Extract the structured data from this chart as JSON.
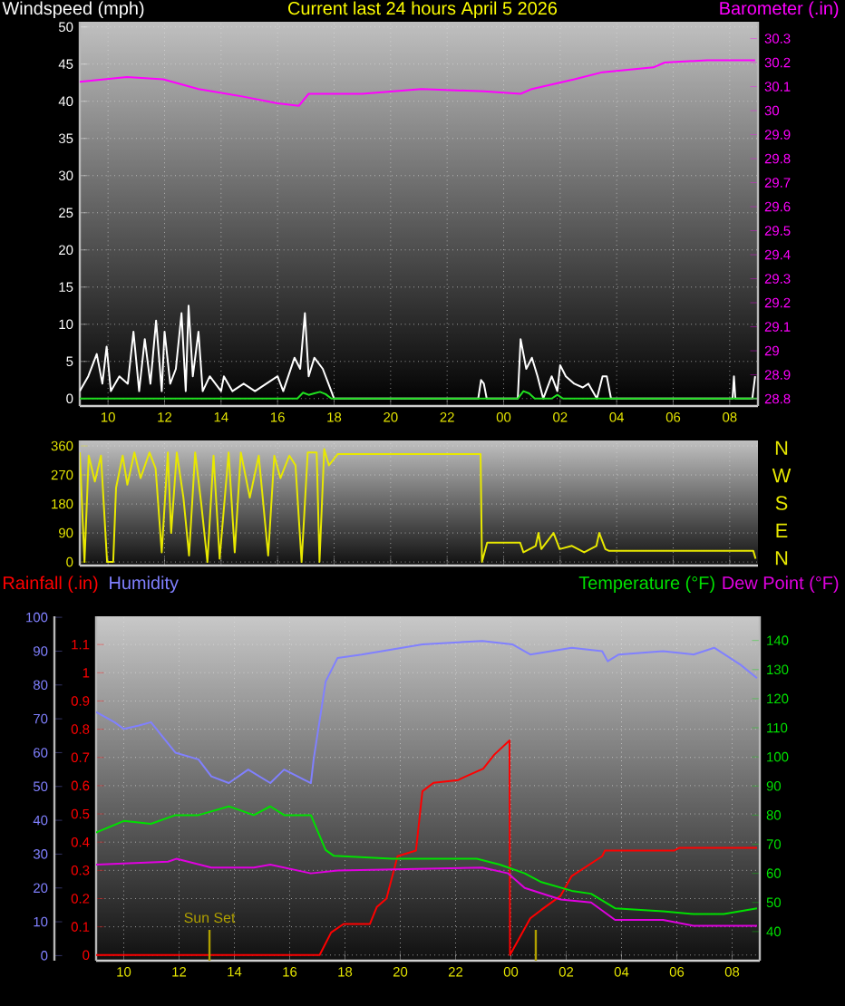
{
  "chart_data": [
    {
      "type": "line",
      "title": "Current last 24 hours April 5 2026",
      "ylabel": "Windspeed (mph)",
      "y2label": "Barometer (.in)",
      "grid": true,
      "xlim": [
        "2026-04-04T09:00",
        "2026-04-05T09:00"
      ],
      "xticks": [
        {
          "value": "2026-04-04T10:00",
          "label": "10"
        },
        {
          "value": "2026-04-04T12:00",
          "label": "12"
        },
        {
          "value": "2026-04-04T14:00",
          "label": "14"
        },
        {
          "value": "2026-04-04T16:00",
          "label": "16"
        },
        {
          "value": "2026-04-04T18:00",
          "label": "18"
        },
        {
          "value": "2026-04-04T20:00",
          "label": "20"
        },
        {
          "value": "2026-04-04T22:00",
          "label": "22"
        },
        {
          "value": "2026-04-05T00:00",
          "label": "00"
        },
        {
          "value": "2026-04-05T02:00",
          "label": "02"
        },
        {
          "value": "2026-04-05T04:00",
          "label": "04"
        },
        {
          "value": "2026-04-05T06:00",
          "label": "06"
        },
        {
          "value": "2026-04-05T08:00",
          "label": "08"
        }
      ],
      "ylim": [
        -1,
        50.7
      ],
      "yticks": [
        0,
        5,
        10,
        15,
        20,
        25,
        30,
        35,
        40,
        45,
        50
      ],
      "y2lim": [
        28.77,
        30.37
      ],
      "y2ticks": [
        28.8,
        28.9,
        29,
        29.1,
        29.2,
        29.3,
        29.4,
        29.5,
        29.6,
        29.7,
        29.8,
        29.9,
        30,
        30.1,
        30.2,
        30.3
      ],
      "series": [
        {
          "color": "#ffffff",
          "x": [
            "2026-04-04T09:00",
            "2026-04-04T09:18",
            "2026-04-04T09:36",
            "2026-04-04T09:48",
            "2026-04-04T09:57",
            "2026-04-04T10:06",
            "2026-04-04T10:24",
            "2026-04-04T10:42",
            "2026-04-04T10:54",
            "2026-04-04T11:06",
            "2026-04-04T11:18",
            "2026-04-04T11:30",
            "2026-04-04T11:42",
            "2026-04-04T11:54",
            "2026-04-04T12:00",
            "2026-04-04T12:12",
            "2026-04-04T12:24",
            "2026-04-04T12:36",
            "2026-04-04T12:45",
            "2026-04-04T12:51",
            "2026-04-04T13:00",
            "2026-04-04T13:12",
            "2026-04-04T13:21",
            "2026-04-04T13:36",
            "2026-04-04T14:00",
            "2026-04-04T14:06",
            "2026-04-04T14:24",
            "2026-04-04T14:48",
            "2026-04-04T15:12",
            "2026-04-04T15:36",
            "2026-04-04T16:00",
            "2026-04-04T16:12",
            "2026-04-04T16:36",
            "2026-04-04T16:48",
            "2026-04-04T16:58",
            "2026-04-04T17:06",
            "2026-04-04T17:18",
            "2026-04-04T17:36",
            "2026-04-04T17:48",
            "2026-04-04T18:00",
            "2026-04-04T23:06",
            "2026-04-04T23:12",
            "2026-04-04T23:18",
            "2026-04-04T23:24",
            "2026-04-05T00:30",
            "2026-04-05T00:36",
            "2026-04-05T00:48",
            "2026-04-05T01:00",
            "2026-04-05T01:12",
            "2026-04-05T01:24",
            "2026-04-05T01:42",
            "2026-04-05T01:54",
            "2026-04-05T02:00",
            "2026-04-05T02:12",
            "2026-04-05T02:30",
            "2026-04-05T02:48",
            "2026-04-05T03:00",
            "2026-04-05T03:18",
            "2026-04-05T03:30",
            "2026-04-05T03:39",
            "2026-04-05T03:48",
            "2026-04-05T08:06",
            "2026-04-05T08:09",
            "2026-04-05T08:12",
            "2026-04-05T08:48",
            "2026-04-05T08:54"
          ],
          "values": [
            1,
            3,
            6,
            2,
            7,
            1,
            3,
            2,
            9,
            1,
            8,
            2,
            10.5,
            1,
            9,
            2,
            4,
            11.5,
            1,
            12.5,
            3,
            9,
            1,
            3,
            1,
            3,
            1,
            2,
            1,
            2,
            3,
            1,
            5.5,
            4,
            11.5,
            3,
            5.5,
            4,
            2,
            0,
            0,
            2.5,
            2,
            0,
            0,
            8,
            4,
            5.5,
            3,
            0,
            3,
            1,
            4.5,
            3,
            2,
            1.5,
            2,
            0,
            3,
            3,
            0,
            0,
            3,
            0,
            0,
            3
          ]
        },
        {
          "color": "#20e020",
          "x": [
            "2026-04-04T09:00",
            "2026-04-04T16:42",
            "2026-04-04T16:54",
            "2026-04-04T17:06",
            "2026-04-04T17:18",
            "2026-04-04T17:30",
            "2026-04-04T17:42",
            "2026-04-04T17:54",
            "2026-04-05T00:30",
            "2026-04-05T00:42",
            "2026-04-05T00:54",
            "2026-04-05T01:06",
            "2026-04-05T01:42",
            "2026-04-05T01:54",
            "2026-04-05T02:06",
            "2026-04-05T09:00"
          ],
          "values": [
            0,
            0,
            0.8,
            0.5,
            0.7,
            0.9,
            0.6,
            0,
            0,
            1,
            0.7,
            0,
            0,
            0.5,
            0,
            0
          ]
        },
        {
          "color": "#ff00ff",
          "axis": "y2",
          "x": [
            "2026-04-04T09:00",
            "2026-04-04T10:40",
            "2026-04-04T11:57",
            "2026-04-04T13:12",
            "2026-04-04T14:42",
            "2026-04-04T16:00",
            "2026-04-04T16:45",
            "2026-04-04T17:06",
            "2026-04-04T19:00",
            "2026-04-04T21:06",
            "2026-04-04T23:18",
            "2026-04-05T00:36",
            "2026-04-05T01:00",
            "2026-04-05T02:30",
            "2026-04-05T03:30",
            "2026-04-05T05:18",
            "2026-04-05T05:42",
            "2026-04-05T07:12",
            "2026-04-05T08:54"
          ],
          "values": [
            30.12,
            30.14,
            30.13,
            30.09,
            30.06,
            30.03,
            30.02,
            30.07,
            30.07,
            30.09,
            30.08,
            30.07,
            30.09,
            30.13,
            30.16,
            30.18,
            30.2,
            30.21,
            30.21
          ]
        }
      ]
    },
    {
      "type": "line",
      "grid": true,
      "tick_labels": "y",
      "xlim": [
        "2026-04-04T09:00",
        "2026-04-05T09:00"
      ],
      "xticks": [
        {
          "value": "2026-04-04T10:00",
          "label": null
        },
        {
          "value": "2026-04-04T12:00",
          "label": null
        },
        {
          "value": "2026-04-04T14:00",
          "label": null
        },
        {
          "value": "2026-04-04T16:00",
          "label": null
        },
        {
          "value": "2026-04-04T18:00",
          "label": null
        },
        {
          "value": "2026-04-04T20:00",
          "label": null
        },
        {
          "value": "2026-04-04T22:00",
          "label": null
        },
        {
          "value": "2026-04-05T00:00",
          "label": null
        },
        {
          "value": "2026-04-05T02:00",
          "label": null
        },
        {
          "value": "2026-04-05T04:00",
          "label": null
        },
        {
          "value": "2026-04-05T06:00",
          "label": null
        },
        {
          "value": "2026-04-05T08:00",
          "label": null
        }
      ],
      "ylim": [
        -11,
        377
      ],
      "yticks": [
        0,
        90,
        180,
        270,
        360
      ],
      "annotations": [
        "N",
        "W",
        "S",
        "E",
        "N"
      ],
      "series": [
        {
          "color": "#e8e800",
          "x": [
            "2026-04-04T09:00",
            "2026-04-04T09:10",
            "2026-04-04T09:19",
            "2026-04-04T09:32",
            "2026-04-04T09:45",
            "2026-04-04T09:58",
            "2026-04-04T10:11",
            "2026-04-04T10:17",
            "2026-04-04T10:31",
            "2026-04-04T10:41",
            "2026-04-04T10:56",
            "2026-04-04T11:09",
            "2026-04-04T11:28",
            "2026-04-04T11:41",
            "2026-04-04T11:54",
            "2026-04-04T12:07",
            "2026-04-04T12:14",
            "2026-04-04T12:26",
            "2026-04-04T12:40",
            "2026-04-04T12:52",
            "2026-04-04T13:05",
            "2026-04-04T13:18",
            "2026-04-04T13:31",
            "2026-04-04T13:44",
            "2026-04-04T13:57",
            "2026-04-04T14:16",
            "2026-04-04T14:29",
            "2026-04-04T14:42",
            "2026-04-04T15:01",
            "2026-04-04T15:20",
            "2026-04-04T15:40",
            "2026-04-04T15:53",
            "2026-04-04T16:06",
            "2026-04-04T16:25",
            "2026-04-04T16:38",
            "2026-04-04T16:51",
            "2026-04-04T17:04",
            "2026-04-04T17:23",
            "2026-04-04T17:29",
            "2026-04-04T17:39",
            "2026-04-04T17:49",
            "2026-04-04T18:08",
            "2026-04-04T23:11",
            "2026-04-04T23:14",
            "2026-04-04T23:25",
            "2026-04-05T00:35",
            "2026-04-05T00:42",
            "2026-04-05T01:08",
            "2026-04-05T01:14",
            "2026-04-05T01:20",
            "2026-04-05T01:46",
            "2026-04-05T01:59",
            "2026-04-05T02:25",
            "2026-04-05T02:51",
            "2026-04-05T03:17",
            "2026-04-05T03:23",
            "2026-04-05T03:36",
            "2026-04-05T03:43",
            "2026-04-05T08:50",
            "2026-04-05T08:55"
          ],
          "values": [
            340,
            0,
            330,
            250,
            330,
            0,
            0,
            230,
            330,
            240,
            340,
            260,
            340,
            290,
            30,
            340,
            90,
            340,
            200,
            20,
            340,
            180,
            0,
            330,
            10,
            340,
            30,
            340,
            200,
            330,
            20,
            330,
            260,
            330,
            300,
            0,
            340,
            340,
            0,
            350,
            300,
            335,
            335,
            0,
            60,
            60,
            30,
            50,
            90,
            40,
            90,
            40,
            50,
            30,
            50,
            90,
            40,
            35,
            35,
            10
          ]
        }
      ]
    },
    {
      "type": "line",
      "grid": true,
      "xlim": [
        "2026-04-04T09:00",
        "2026-04-05T09:00"
      ],
      "xticks": [
        {
          "value": "2026-04-04T10:00",
          "label": "10"
        },
        {
          "value": "2026-04-04T12:00",
          "label": "12"
        },
        {
          "value": "2026-04-04T14:00",
          "label": "14"
        },
        {
          "value": "2026-04-04T16:00",
          "label": "16"
        },
        {
          "value": "2026-04-04T18:00",
          "label": "18"
        },
        {
          "value": "2026-04-04T20:00",
          "label": "20"
        },
        {
          "value": "2026-04-04T22:00",
          "label": "22"
        },
        {
          "value": "2026-04-05T00:00",
          "label": "00"
        },
        {
          "value": "2026-04-05T02:00",
          "label": "02"
        },
        {
          "value": "2026-04-05T04:00",
          "label": "04"
        },
        {
          "value": "2026-04-05T06:00",
          "label": "06"
        },
        {
          "value": "2026-04-05T08:00",
          "label": "08"
        }
      ],
      "ylim": [
        -0.02,
        1.2
      ],
      "yticks": [
        0,
        0.1,
        0.2,
        0.3,
        0.4,
        0.5,
        0.6,
        0.7,
        0.8,
        0.9,
        1,
        1.1
      ],
      "y2lim": [
        -1.5,
        100.3
      ],
      "y2ticks": [
        0,
        10,
        20,
        30,
        40,
        50,
        60,
        70,
        80,
        90,
        100
      ],
      "y3lim": [
        30,
        148.3
      ],
      "y3ticks": [
        40,
        50,
        60,
        70,
        80,
        90,
        100,
        110,
        120,
        130,
        140
      ],
      "ref_lines": [
        {
          "axis": "x",
          "value": "2026-04-04T13:06",
          "label": "Sun Set",
          "color": "#b0a000"
        },
        {
          "axis": "x",
          "value": "2026-04-05T00:54",
          "color": "#b0a000"
        }
      ],
      "series": [
        {
          "name": "Rainfall (.in)",
          "color": "#ff0000",
          "x": [
            "2026-04-04T09:00",
            "2026-04-04T17:05",
            "2026-04-04T17:30",
            "2026-04-04T17:57",
            "2026-04-04T18:54",
            "2026-04-04T19:09",
            "2026-04-04T19:30",
            "2026-04-04T19:54",
            "2026-04-04T20:34",
            "2026-04-04T20:48",
            "2026-04-04T21:12",
            "2026-04-04T22:06",
            "2026-04-04T22:18",
            "2026-04-04T23:00",
            "2026-04-04T23:24",
            "2026-04-04T23:57",
            "2026-04-04T23:58",
            "2026-04-05T00:42",
            "2026-04-05T01:06",
            "2026-04-05T01:48",
            "2026-04-05T02:12",
            "2026-04-05T03:18",
            "2026-04-05T03:24",
            "2026-04-05T05:54",
            "2026-04-05T06:06",
            "2026-04-05T08:54"
          ],
          "values": [
            0,
            0,
            0.08,
            0.11,
            0.11,
            0.17,
            0.2,
            0.35,
            0.37,
            0.58,
            0.61,
            0.62,
            0.63,
            0.66,
            0.71,
            0.76,
            0,
            0.13,
            0.16,
            0.21,
            0.28,
            0.35,
            0.37,
            0.37,
            0.38,
            0.38
          ]
        },
        {
          "name": "Humidity",
          "color": "#8080ff",
          "axis": "y2",
          "x": [
            "2026-04-04T09:00",
            "2026-04-04T09:40",
            "2026-04-04T10:00",
            "2026-04-04T10:33",
            "2026-04-04T10:59",
            "2026-04-04T11:52",
            "2026-04-04T12:42",
            "2026-04-04T13:10",
            "2026-04-04T13:48",
            "2026-04-04T14:30",
            "2026-04-04T15:18",
            "2026-04-04T15:48",
            "2026-04-04T16:46",
            "2026-04-04T16:52",
            "2026-04-04T17:18",
            "2026-04-04T17:44",
            "2026-04-04T18:36",
            "2026-04-04T20:48",
            "2026-04-04T22:58",
            "2026-04-05T00:03",
            "2026-04-05T00:42",
            "2026-04-05T02:12",
            "2026-04-05T03:18",
            "2026-04-05T03:30",
            "2026-04-05T03:54",
            "2026-04-05T05:30",
            "2026-04-05T06:36",
            "2026-04-05T07:21",
            "2026-04-05T08:18",
            "2026-04-05T08:54"
          ],
          "values": [
            72,
            69,
            67,
            68,
            69,
            60,
            58,
            53,
            51,
            55,
            51,
            55,
            51,
            58,
            81,
            88,
            89,
            92,
            93,
            92,
            89,
            91,
            90,
            87,
            89,
            90,
            89,
            91,
            86,
            82
          ]
        },
        {
          "name": "Temperature (°F)",
          "color": "#00e000",
          "axis": "y3",
          "x": [
            "2026-04-04T09:00",
            "2026-04-04T10:00",
            "2026-04-04T10:59",
            "2026-04-04T11:52",
            "2026-04-04T12:42",
            "2026-04-04T13:48",
            "2026-04-04T14:42",
            "2026-04-04T15:18",
            "2026-04-04T15:48",
            "2026-04-04T16:46",
            "2026-04-04T17:18",
            "2026-04-04T17:36",
            "2026-04-04T19:42",
            "2026-04-04T22:46",
            "2026-04-04T23:36",
            "2026-04-05T00:30",
            "2026-04-05T01:06",
            "2026-04-05T02:12",
            "2026-04-05T02:54",
            "2026-04-05T03:46",
            "2026-04-05T05:30",
            "2026-04-05T06:36",
            "2026-04-05T07:42",
            "2026-04-05T08:54"
          ],
          "values": [
            74,
            78,
            77,
            80,
            80,
            83,
            80,
            83,
            80,
            80,
            68,
            66,
            65,
            65,
            63,
            60,
            57,
            54,
            53,
            48,
            47,
            46,
            46,
            48
          ]
        },
        {
          "name": "Dew Point (°F)",
          "color": "#e000e0",
          "axis": "y3",
          "x": [
            "2026-04-04T09:00",
            "2026-04-04T11:36",
            "2026-04-04T11:54",
            "2026-04-04T13:10",
            "2026-04-04T14:42",
            "2026-04-04T15:18",
            "2026-04-04T16:46",
            "2026-04-04T17:44",
            "2026-04-04T22:58",
            "2026-04-04T23:54",
            "2026-04-05T00:30",
            "2026-04-05T01:48",
            "2026-04-05T02:54",
            "2026-04-05T03:46",
            "2026-04-05T05:30",
            "2026-04-05T06:36",
            "2026-04-05T08:54"
          ],
          "values": [
            63,
            64,
            65,
            62,
            62,
            63,
            60,
            61,
            62,
            60,
            55,
            51,
            50,
            44,
            44,
            42,
            42
          ]
        }
      ]
    }
  ]
}
